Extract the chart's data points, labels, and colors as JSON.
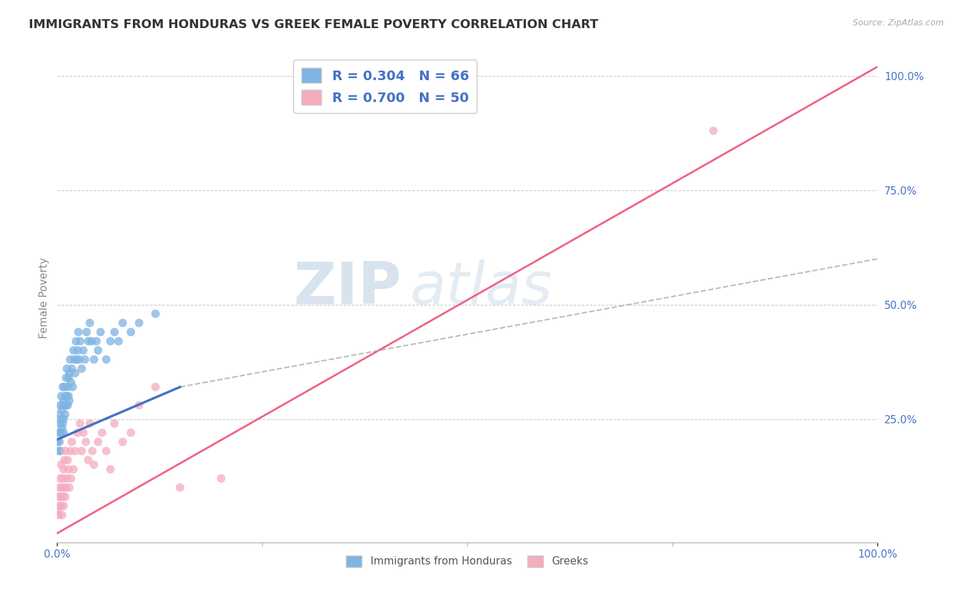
{
  "title": "IMMIGRANTS FROM HONDURAS VS GREEK FEMALE POVERTY CORRELATION CHART",
  "source": "Source: ZipAtlas.com",
  "ylabel": "Female Poverty",
  "xlabel": "",
  "series": [
    {
      "label": "Immigrants from Honduras",
      "R": 0.304,
      "N": 66,
      "color": "#7EB4E2",
      "line_color": "#4472C4",
      "line_style": "-",
      "x": [
        0.001,
        0.002,
        0.002,
        0.003,
        0.003,
        0.003,
        0.004,
        0.004,
        0.004,
        0.005,
        0.005,
        0.005,
        0.006,
        0.006,
        0.007,
        0.007,
        0.007,
        0.008,
        0.008,
        0.008,
        0.009,
        0.009,
        0.01,
        0.01,
        0.011,
        0.011,
        0.012,
        0.012,
        0.013,
        0.013,
        0.014,
        0.014,
        0.015,
        0.015,
        0.016,
        0.017,
        0.018,
        0.019,
        0.02,
        0.021,
        0.022,
        0.023,
        0.024,
        0.025,
        0.026,
        0.027,
        0.028,
        0.03,
        0.032,
        0.034,
        0.036,
        0.038,
        0.04,
        0.042,
        0.045,
        0.048,
        0.05,
        0.053,
        0.06,
        0.065,
        0.07,
        0.075,
        0.08,
        0.09,
        0.1,
        0.12
      ],
      "y": [
        0.2,
        0.22,
        0.18,
        0.24,
        0.2,
        0.26,
        0.22,
        0.28,
        0.18,
        0.25,
        0.22,
        0.3,
        0.23,
        0.27,
        0.24,
        0.28,
        0.32,
        0.25,
        0.29,
        0.22,
        0.28,
        0.32,
        0.26,
        0.3,
        0.28,
        0.34,
        0.3,
        0.36,
        0.32,
        0.28,
        0.34,
        0.3,
        0.35,
        0.29,
        0.38,
        0.33,
        0.36,
        0.32,
        0.4,
        0.38,
        0.35,
        0.42,
        0.38,
        0.4,
        0.44,
        0.38,
        0.42,
        0.36,
        0.4,
        0.38,
        0.44,
        0.42,
        0.46,
        0.42,
        0.38,
        0.42,
        0.4,
        0.44,
        0.38,
        0.42,
        0.44,
        0.42,
        0.46,
        0.44,
        0.46,
        0.48
      ]
    },
    {
      "label": "Greeks",
      "R": 0.7,
      "N": 50,
      "color": "#F4ACBF",
      "line_color": "#F06080",
      "line_style": "-",
      "x": [
        0.001,
        0.002,
        0.002,
        0.003,
        0.003,
        0.004,
        0.004,
        0.005,
        0.005,
        0.006,
        0.006,
        0.007,
        0.007,
        0.008,
        0.008,
        0.009,
        0.009,
        0.01,
        0.01,
        0.011,
        0.012,
        0.013,
        0.014,
        0.015,
        0.016,
        0.017,
        0.018,
        0.02,
        0.022,
        0.025,
        0.028,
        0.03,
        0.032,
        0.035,
        0.038,
        0.04,
        0.043,
        0.045,
        0.05,
        0.055,
        0.06,
        0.065,
        0.07,
        0.08,
        0.09,
        0.1,
        0.12,
        0.15,
        0.2,
        0.8
      ],
      "y": [
        0.05,
        0.08,
        0.04,
        0.1,
        0.06,
        0.12,
        0.08,
        0.15,
        0.06,
        0.1,
        0.04,
        0.12,
        0.08,
        0.14,
        0.06,
        0.1,
        0.16,
        0.08,
        0.18,
        0.1,
        0.12,
        0.16,
        0.14,
        0.1,
        0.18,
        0.12,
        0.2,
        0.14,
        0.18,
        0.22,
        0.24,
        0.18,
        0.22,
        0.2,
        0.16,
        0.24,
        0.18,
        0.15,
        0.2,
        0.22,
        0.18,
        0.14,
        0.24,
        0.2,
        0.22,
        0.28,
        0.32,
        0.1,
        0.12,
        0.88
      ]
    }
  ],
  "trend_lines": [
    {
      "x_start": 0.0,
      "x_end": 1.0,
      "y_start": 0.2,
      "y_end": 0.6,
      "color": "#4472C4",
      "style": "-",
      "linewidth": 2.5
    },
    {
      "x_start": 0.0,
      "x_end": 1.0,
      "y_start": 0.0,
      "y_end": 1.02,
      "color": "#F06080",
      "style": "-",
      "linewidth": 2.0
    },
    {
      "x_start": 0.0,
      "x_end": 1.0,
      "y_start": 0.2,
      "y_end": 0.6,
      "color": "#AAAAAA",
      "style": "--",
      "linewidth": 1.5
    }
  ],
  "xlim": [
    0.0,
    1.0
  ],
  "ylim": [
    -0.02,
    1.05
  ],
  "yticks": [
    0.25,
    0.5,
    0.75,
    1.0
  ],
  "ytick_labels": [
    "25.0%",
    "50.0%",
    "75.0%",
    "100.0%"
  ],
  "xtick_labels": [
    "0.0%",
    "100.0%"
  ],
  "watermark": "ZIPAtlas",
  "watermark_color": "#C8D8E8",
  "title_color": "#333333",
  "title_fontsize": 13,
  "axis_label_color": "#888888",
  "tick_label_color": "#4472C4",
  "legend_R_color": "#4472C4",
  "background_color": "#FFFFFF",
  "grid_color": "#CCCCCC"
}
